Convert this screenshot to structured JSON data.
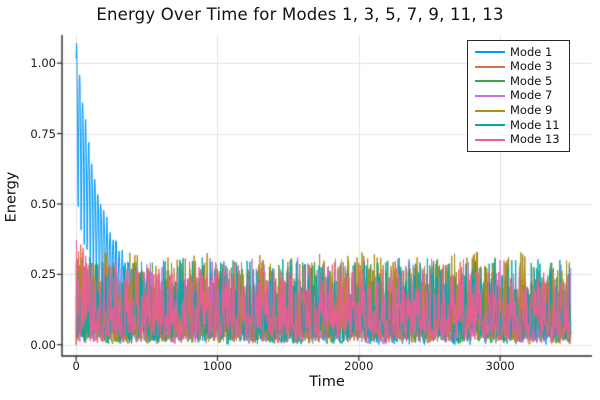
{
  "figure": {
    "background": "#ffffff"
  },
  "chart_data": {
    "type": "line",
    "title": "Energy Over Time for Modes 1, 3, 5, 7, 9, 11, 13",
    "xlabel": "Time",
    "ylabel": "Energy",
    "xlim": [
      -100,
      3650
    ],
    "ylim": [
      -0.04,
      1.1
    ],
    "t_range": [
      0,
      3500
    ],
    "sample_step": 2.5,
    "grid": true,
    "grid_color": "#e4e4e4",
    "spine_color": "#2a2a2a",
    "background": "#ffffff",
    "x_ticks": [
      {
        "value": 0,
        "label": "0"
      },
      {
        "value": 1000,
        "label": "1000"
      },
      {
        "value": 2000,
        "label": "2000"
      },
      {
        "value": 3000,
        "label": "3000"
      }
    ],
    "y_ticks": [
      {
        "value": 0,
        "label": "0.00"
      },
      {
        "value": 0.25,
        "label": "0.25"
      },
      {
        "value": 0.5,
        "label": "0.50"
      },
      {
        "value": 0.75,
        "label": "0.75"
      },
      {
        "value": 1,
        "label": "1.00"
      }
    ],
    "legend": {
      "position": "top-right",
      "background": "#ffffff",
      "border_color": "#2a2a2a"
    },
    "series": [
      {
        "name": "Mode 1",
        "color": "#009AFA",
        "gen": {
          "type": "decay_osc",
          "base0": 0.44,
          "base_tau": 160,
          "amp0": 0.46,
          "amp_tau": 170,
          "amp_floor": 0.18,
          "period": 43,
          "phase": 1.1,
          "noise": 0.05,
          "seed": 11
        }
      },
      {
        "name": "Mode 3",
        "color": "#E36F47",
        "gen": {
          "type": "noise",
          "amp": 0.3,
          "pow": 3.2,
          "boost": 0.35,
          "boost_tau": 90,
          "seed": 23
        }
      },
      {
        "name": "Mode 5",
        "color": "#3DA44E",
        "gen": {
          "type": "noise",
          "amp": 0.3,
          "pow": 3.6,
          "boost": 0,
          "boost_tau": 100,
          "seed": 37
        }
      },
      {
        "name": "Mode 7",
        "color": "#C371D2",
        "gen": {
          "type": "noise",
          "amp": 0.31,
          "pow": 3.4,
          "boost": 0,
          "boost_tau": 100,
          "seed": 41
        }
      },
      {
        "name": "Mode 9",
        "color": "#AC8E18",
        "gen": {
          "type": "noise",
          "amp": 0.33,
          "pow": 3.3,
          "boost": 0,
          "boost_tau": 100,
          "seed": 53
        }
      },
      {
        "name": "Mode 11",
        "color": "#00AAAE",
        "gen": {
          "type": "noise",
          "amp": 0.31,
          "pow": 3.2,
          "boost": 0,
          "boost_tau": 100,
          "seed": 67
        }
      },
      {
        "name": "Mode 13",
        "color": "#ED5E93",
        "gen": {
          "type": "noise",
          "amp": 0.27,
          "pow": 2.4,
          "boost": 0.4,
          "boost_tau": 120,
          "seed": 79
        }
      }
    ],
    "readings": {
      "mode1_peak_envelope": [
        [
          0,
          1.08
        ],
        [
          100,
          0.95
        ],
        [
          150,
          0.75
        ],
        [
          200,
          0.55
        ],
        [
          300,
          0.35
        ],
        [
          400,
          0.25
        ],
        [
          700,
          0.27
        ],
        [
          1000,
          0.22
        ],
        [
          2000,
          0.22
        ],
        [
          3000,
          0.22
        ],
        [
          3500,
          0.2
        ]
      ],
      "other_modes_observed_band": [
        0.0,
        0.33
      ]
    }
  }
}
